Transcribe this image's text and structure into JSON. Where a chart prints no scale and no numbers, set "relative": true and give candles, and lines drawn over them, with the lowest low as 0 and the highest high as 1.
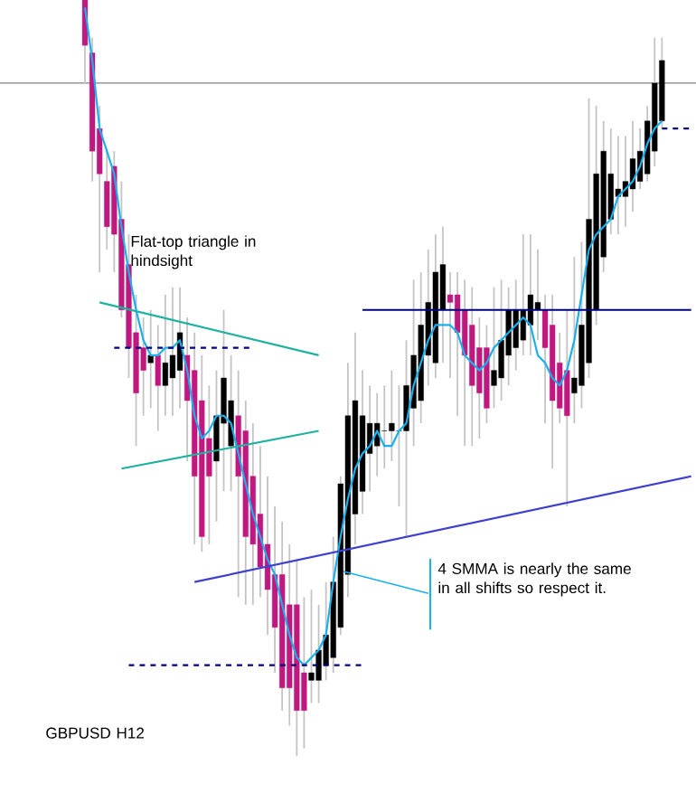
{
  "chart_data": {
    "type": "candlestick",
    "relative": true,
    "categories": [
      null,
      null,
      null,
      null,
      null,
      null,
      null,
      null,
      null,
      null,
      null,
      null,
      null,
      null,
      null,
      null,
      null,
      null,
      null,
      null,
      null,
      null,
      null,
      null,
      null,
      null,
      null,
      null,
      null,
      null,
      null,
      null,
      null,
      null,
      null,
      null,
      null,
      null,
      null,
      null,
      null,
      null,
      null,
      null,
      null,
      null,
      null,
      null,
      null,
      null,
      null,
      null,
      null,
      null,
      null,
      null,
      null,
      null,
      null,
      null,
      null,
      null,
      null,
      null,
      null,
      null,
      null,
      null,
      null,
      null,
      null,
      null,
      null,
      null,
      null,
      null,
      null,
      null,
      null,
      null,
      null,
      null,
      null,
      null
    ],
    "ohlc": [
      [
        1.0,
        1.0,
        0.89,
        0.94
      ],
      [
        0.93,
        0.95,
        0.76,
        0.8
      ],
      [
        0.83,
        0.86,
        0.64,
        0.77
      ],
      [
        0.76,
        0.8,
        0.67,
        0.7
      ],
      [
        0.78,
        0.8,
        0.64,
        0.69
      ],
      [
        0.71,
        0.76,
        0.58,
        0.59
      ],
      [
        0.65,
        0.69,
        0.5,
        0.54
      ],
      [
        0.56,
        0.61,
        0.41,
        0.48
      ],
      [
        0.54,
        0.58,
        0.45,
        0.51
      ],
      [
        0.52,
        0.59,
        0.46,
        0.53
      ],
      [
        0.53,
        0.57,
        0.43,
        0.49
      ],
      [
        0.49,
        0.61,
        0.45,
        0.52
      ],
      [
        0.5,
        0.62,
        0.45,
        0.53
      ],
      [
        0.51,
        0.62,
        0.46,
        0.56
      ],
      [
        0.53,
        0.58,
        0.39,
        0.47
      ],
      [
        0.51,
        0.56,
        0.28,
        0.37
      ],
      [
        0.47,
        0.53,
        0.27,
        0.29
      ],
      [
        0.42,
        0.49,
        0.28,
        0.37
      ],
      [
        0.39,
        0.51,
        0.31,
        0.45
      ],
      [
        0.44,
        0.59,
        0.35,
        0.5
      ],
      [
        0.41,
        0.53,
        0.35,
        0.47
      ],
      [
        0.45,
        0.51,
        0.21,
        0.37
      ],
      [
        0.43,
        0.47,
        0.2,
        0.29
      ],
      [
        0.37,
        0.44,
        0.2,
        0.28
      ],
      [
        0.32,
        0.41,
        0.21,
        0.25
      ],
      [
        0.28,
        0.37,
        0.16,
        0.22
      ],
      [
        0.24,
        0.33,
        0.11,
        0.17
      ],
      [
        0.24,
        0.31,
        0.06,
        0.09
      ],
      [
        0.2,
        0.28,
        0.04,
        0.09
      ],
      [
        0.2,
        0.26,
        0.0,
        0.06
      ],
      [
        0.11,
        0.21,
        0.01,
        0.06
      ],
      [
        0.1,
        0.22,
        0.07,
        0.11
      ],
      [
        0.1,
        0.2,
        0.07,
        0.14
      ],
      [
        0.12,
        0.23,
        0.1,
        0.16
      ],
      [
        0.13,
        0.29,
        0.11,
        0.23
      ],
      [
        0.17,
        0.37,
        0.16,
        0.36
      ],
      [
        0.24,
        0.52,
        0.21,
        0.45
      ],
      [
        0.32,
        0.56,
        0.28,
        0.47
      ],
      [
        0.35,
        0.51,
        0.32,
        0.45
      ],
      [
        0.4,
        0.49,
        0.35,
        0.44
      ],
      [
        0.41,
        0.48,
        0.37,
        0.44
      ],
      [
        0.43,
        0.49,
        0.38,
        0.43
      ],
      [
        0.43,
        0.51,
        0.39,
        0.44
      ],
      [
        0.43,
        0.49,
        0.33,
        0.43
      ],
      [
        0.43,
        0.55,
        0.29,
        0.49
      ],
      [
        0.46,
        0.63,
        0.41,
        0.53
      ],
      [
        0.47,
        0.64,
        0.44,
        0.57
      ],
      [
        0.53,
        0.67,
        0.49,
        0.6
      ],
      [
        0.52,
        0.69,
        0.5,
        0.64
      ],
      [
        0.59,
        0.7,
        0.52,
        0.65
      ],
      [
        0.61,
        0.64,
        0.5,
        0.6
      ],
      [
        0.61,
        0.64,
        0.45,
        0.56
      ],
      [
        0.59,
        0.63,
        0.41,
        0.53
      ],
      [
        0.57,
        0.62,
        0.41,
        0.49
      ],
      [
        0.54,
        0.58,
        0.42,
        0.48
      ],
      [
        0.54,
        0.57,
        0.44,
        0.46
      ],
      [
        0.49,
        0.62,
        0.46,
        0.51
      ],
      [
        0.5,
        0.63,
        0.47,
        0.55
      ],
      [
        0.53,
        0.62,
        0.49,
        0.59
      ],
      [
        0.54,
        0.63,
        0.51,
        0.59
      ],
      [
        0.55,
        0.69,
        0.53,
        0.59
      ],
      [
        0.57,
        0.69,
        0.53,
        0.61
      ],
      [
        0.59,
        0.67,
        0.55,
        0.6
      ],
      [
        0.59,
        0.61,
        0.44,
        0.54
      ],
      [
        0.57,
        0.61,
        0.38,
        0.47
      ],
      [
        0.52,
        0.56,
        0.44,
        0.46
      ],
      [
        0.51,
        0.59,
        0.33,
        0.45
      ],
      [
        0.48,
        0.66,
        0.44,
        0.5
      ],
      [
        0.49,
        0.68,
        0.46,
        0.57
      ],
      [
        0.52,
        0.87,
        0.5,
        0.71
      ],
      [
        0.59,
        0.86,
        0.57,
        0.77
      ],
      [
        0.66,
        0.84,
        0.64,
        0.8
      ],
      [
        0.71,
        0.83,
        0.69,
        0.77
      ],
      [
        0.74,
        0.82,
        0.69,
        0.75
      ],
      [
        0.74,
        0.82,
        0.7,
        0.76
      ],
      [
        0.75,
        0.84,
        0.72,
        0.79
      ],
      [
        0.76,
        0.83,
        0.75,
        0.8
      ],
      [
        0.77,
        0.86,
        0.76,
        0.84
      ],
      [
        0.8,
        0.95,
        0.78,
        0.89
      ],
      [
        0.84,
        0.95,
        0.83,
        0.92
      ],
      null,
      null,
      null,
      null
    ],
    "series": [
      {
        "type": "line",
        "color": "#1ab0ef",
        "values": [
          0.99,
          0.92,
          0.83,
          0.8,
          0.77,
          0.7,
          0.64,
          0.59,
          0.55,
          0.53,
          0.53,
          0.54,
          0.54,
          0.55,
          0.51,
          0.45,
          0.42,
          0.43,
          0.45,
          0.45,
          0.44,
          0.4,
          0.36,
          0.32,
          0.29,
          0.26,
          0.24,
          0.2,
          0.16,
          0.13,
          0.12,
          0.13,
          0.14,
          0.16,
          0.23,
          0.29,
          0.34,
          0.38,
          0.4,
          0.41,
          0.43,
          0.41,
          0.41,
          0.43,
          0.44,
          0.49,
          0.52,
          0.55,
          0.57,
          0.57,
          0.57,
          0.56,
          0.53,
          0.52,
          0.51,
          0.52,
          0.54,
          0.55,
          0.56,
          0.57,
          0.58,
          0.57,
          0.53,
          0.52,
          0.5,
          0.49,
          0.51,
          0.55,
          0.61,
          0.67,
          0.69,
          0.7,
          0.71,
          0.74,
          0.75,
          0.76,
          0.78,
          0.81,
          0.83,
          0.84,
          null,
          null,
          null,
          null
        ]
      },
      {
        "type": "line",
        "color": "#20b2a0",
        "values": [
          null,
          null,
          0.6,
          null,
          null,
          null,
          null,
          null,
          null,
          null,
          null,
          null,
          null,
          null,
          null,
          null,
          null,
          null,
          null,
          null,
          null,
          null,
          null,
          null,
          null,
          null,
          null,
          null,
          null,
          null,
          null,
          null,
          0.53,
          null,
          null,
          null,
          null,
          null,
          null,
          null,
          null,
          null,
          null,
          null,
          null,
          null,
          null,
          null,
          null,
          null,
          null,
          null,
          null,
          null,
          null,
          null,
          null,
          null,
          null,
          null,
          null,
          null,
          null,
          null,
          null,
          null,
          null,
          null,
          null,
          null,
          null,
          null,
          null,
          null,
          null,
          null,
          null,
          null,
          null,
          null,
          null,
          null,
          null,
          null
        ]
      },
      {
        "type": "line",
        "color": "#20b2a0",
        "values": [
          null,
          null,
          null,
          null,
          null,
          0.38,
          null,
          null,
          null,
          null,
          null,
          null,
          null,
          null,
          null,
          null,
          null,
          null,
          null,
          null,
          null,
          null,
          null,
          null,
          null,
          null,
          null,
          null,
          null,
          null,
          null,
          null,
          0.43,
          null,
          null,
          null,
          null,
          null,
          null,
          null,
          null,
          null,
          null,
          null,
          null,
          null,
          null,
          null,
          null,
          null,
          null,
          null,
          null,
          null,
          null,
          null,
          null,
          null,
          null,
          null,
          null,
          null,
          null,
          null,
          null,
          null,
          null,
          null,
          null,
          null,
          null,
          null,
          null,
          null,
          null,
          null,
          null,
          null,
          null,
          null,
          null,
          null,
          null,
          null
        ]
      },
      {
        "type": "line",
        "color": "#4040d0",
        "values": [
          null,
          null,
          null,
          null,
          null,
          null,
          null,
          null,
          null,
          null,
          null,
          null,
          null,
          null,
          null,
          0.23,
          null,
          null,
          null,
          null,
          null,
          null,
          null,
          null,
          null,
          null,
          null,
          null,
          null,
          null,
          null,
          null,
          null,
          null,
          null,
          null,
          null,
          null,
          null,
          null,
          null,
          null,
          null,
          null,
          null,
          null,
          null,
          null,
          null,
          null,
          null,
          null,
          null,
          null,
          null,
          null,
          null,
          null,
          null,
          null,
          null,
          null,
          null,
          null,
          null,
          null,
          null,
          null,
          null,
          null,
          null,
          null,
          null,
          null,
          null,
          null,
          null,
          null,
          null,
          null,
          null,
          null,
          null,
          0.37
        ]
      },
      {
        "type": "line",
        "color": "#000080",
        "line_style": "dashed",
        "values": [
          null,
          null,
          null,
          null,
          0.54,
          null,
          null,
          null,
          null,
          null,
          null,
          null,
          null,
          null,
          null,
          null,
          null,
          null,
          null,
          null,
          null,
          null,
          null,
          0.54,
          null,
          null,
          null,
          null,
          null,
          null,
          null,
          null,
          null,
          null,
          null,
          null,
          null,
          null,
          null,
          null,
          null,
          null,
          null,
          null,
          null,
          null,
          null,
          null,
          null,
          null,
          null,
          null,
          null,
          null,
          null,
          null,
          null,
          null,
          null,
          null,
          null,
          null,
          null,
          null,
          null,
          null,
          null,
          null,
          null,
          null,
          null,
          null,
          null,
          null,
          null,
          null,
          null,
          null,
          null,
          null,
          null,
          null,
          null,
          null
        ]
      },
      {
        "type": "line",
        "color": "#000080",
        "line_style": "dashed",
        "values": [
          null,
          null,
          null,
          null,
          null,
          null,
          0.12,
          null,
          null,
          null,
          null,
          null,
          null,
          null,
          null,
          null,
          null,
          null,
          null,
          null,
          null,
          null,
          null,
          null,
          null,
          null,
          null,
          null,
          null,
          null,
          null,
          null,
          null,
          null,
          null,
          null,
          null,
          null,
          0.12,
          null,
          null,
          null,
          null,
          null,
          null,
          null,
          null,
          null,
          null,
          null,
          null,
          null,
          null,
          null,
          null,
          null,
          null,
          null,
          null,
          null,
          null,
          null,
          null,
          null,
          null,
          null,
          null,
          null,
          null,
          null,
          null,
          null,
          null,
          null,
          null,
          null,
          null,
          null,
          null,
          null,
          null,
          null,
          null,
          null
        ]
      },
      {
        "type": "line",
        "color": "#000080",
        "values": [
          null,
          null,
          null,
          null,
          null,
          null,
          null,
          null,
          null,
          null,
          null,
          null,
          null,
          null,
          null,
          null,
          null,
          null,
          null,
          null,
          null,
          null,
          null,
          null,
          null,
          null,
          null,
          null,
          null,
          null,
          null,
          null,
          null,
          null,
          null,
          null,
          null,
          null,
          0.59,
          null,
          null,
          null,
          null,
          null,
          null,
          null,
          null,
          null,
          null,
          null,
          null,
          null,
          null,
          null,
          null,
          null,
          null,
          null,
          null,
          null,
          null,
          null,
          null,
          null,
          null,
          null,
          null,
          null,
          null,
          null,
          null,
          null,
          null,
          null,
          null,
          null,
          null,
          null,
          null,
          null,
          null,
          null,
          null,
          0.59
        ]
      },
      {
        "type": "line",
        "color": "#000080",
        "line_style": "dashed",
        "values": [
          null,
          null,
          null,
          null,
          null,
          null,
          null,
          null,
          null,
          null,
          null,
          null,
          null,
          null,
          null,
          null,
          null,
          null,
          null,
          null,
          null,
          null,
          null,
          null,
          null,
          null,
          null,
          null,
          null,
          null,
          null,
          null,
          null,
          null,
          null,
          null,
          null,
          null,
          null,
          null,
          null,
          null,
          null,
          null,
          null,
          null,
          null,
          null,
          null,
          null,
          null,
          null,
          null,
          null,
          null,
          null,
          null,
          null,
          null,
          null,
          null,
          null,
          null,
          null,
          null,
          null,
          null,
          null,
          null,
          null,
          null,
          null,
          null,
          null,
          null,
          null,
          null,
          null,
          null,
          0.83,
          null,
          null,
          null,
          0.83
        ]
      }
    ],
    "ref_lines": [
      {
        "axis": "y",
        "value": 0.89,
        "color": "#808080"
      }
    ],
    "annotations": [
      "Flat-top triangle in hindsight",
      "4 SMMA is nearly the same in all shifts so respect it.",
      "GBPUSD H12"
    ]
  }
}
